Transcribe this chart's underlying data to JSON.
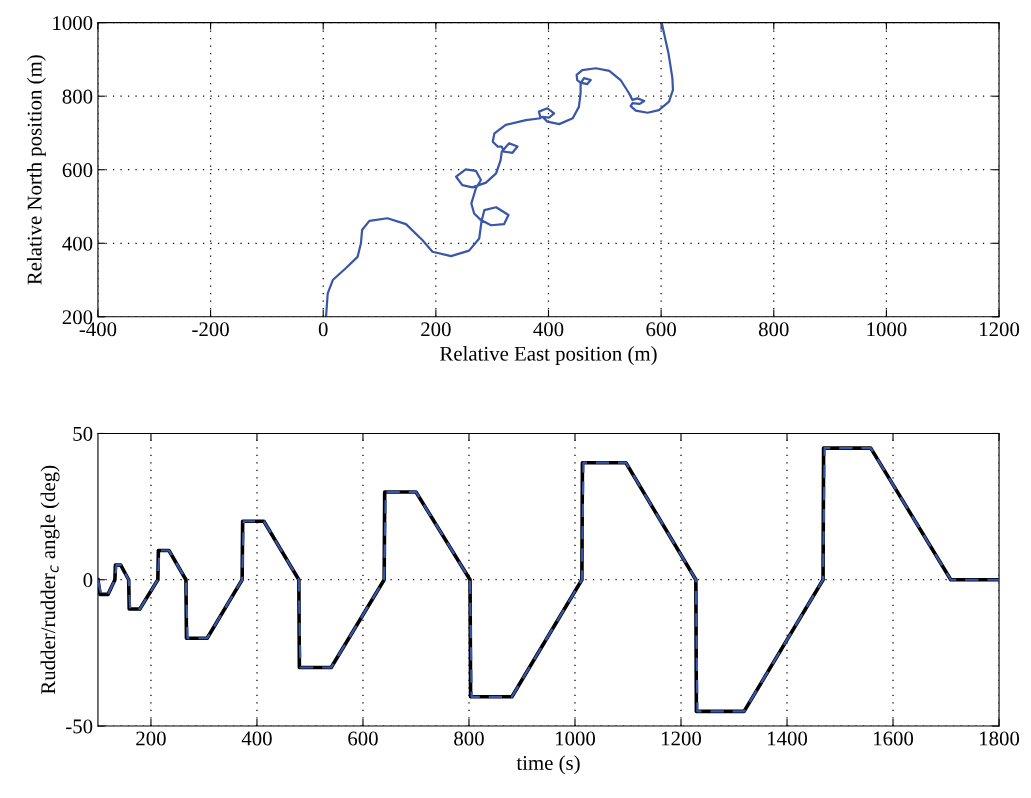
{
  "chart_data": [
    {
      "type": "line",
      "xlabel": "Relative East position (m)",
      "ylabel": "Relative North position (m)",
      "xlim": [
        -400,
        1200
      ],
      "xticks": [
        -400,
        -200,
        0,
        200,
        400,
        600,
        800,
        1000,
        1200
      ],
      "ylim": [
        200,
        1000
      ],
      "yticks": [
        200,
        400,
        600,
        800,
        1000
      ],
      "grid": true,
      "line_style": "solid",
      "series": [
        {
          "color": "#3a56a8",
          "x": [
            5,
            8,
            17,
            40,
            61,
            67,
            69,
            82,
            114,
            147,
            176,
            194,
            227,
            259,
            277,
            281,
            286,
            307,
            329,
            321,
            298,
            280,
            268,
            263,
            271,
            280,
            271,
            253,
            236,
            247,
            265,
            289,
            307,
            315,
            317,
            330,
            345,
            336,
            321,
            317,
            310,
            301,
            304,
            324,
            360,
            386,
            383,
            398,
            410,
            401,
            389,
            398,
            419,
            443,
            454,
            457,
            457,
            463,
            475,
            469,
            457,
            451,
            450,
            460,
            484,
            508,
            528,
            543,
            549,
            558,
            570,
            562,
            549,
            546,
            555,
            576,
            596,
            614,
            621,
            620,
            613,
            601
          ],
          "values": [
            200,
            264,
            300,
            332,
            363,
            400,
            436,
            461,
            468,
            452,
            409,
            377,
            365,
            380,
            413,
            459,
            490,
            498,
            477,
            452,
            449,
            463,
            481,
            508,
            549,
            572,
            597,
            601,
            581,
            558,
            552,
            565,
            590,
            626,
            649,
            672,
            663,
            646,
            649,
            663,
            663,
            676,
            699,
            722,
            735,
            740,
            758,
            767,
            753,
            742,
            744,
            731,
            724,
            740,
            771,
            808,
            835,
            849,
            844,
            833,
            837,
            844,
            858,
            871,
            876,
            869,
            844,
            808,
            790,
            794,
            787,
            779,
            781,
            773,
            761,
            755,
            762,
            785,
            817,
            849,
            917,
            1000
          ]
        }
      ]
    },
    {
      "type": "line",
      "xlabel": "time (s)",
      "ylabel": "Rudder/rudder$_{c}$ angle (deg)",
      "xlim": [
        100,
        1800
      ],
      "xticks": [
        200,
        400,
        600,
        800,
        1000,
        1200,
        1400,
        1600,
        1800
      ],
      "ylim": [
        -50,
        50
      ],
      "yticks": [
        -50,
        0,
        50
      ],
      "grid": true,
      "series": [
        {
          "color": "#000000",
          "line_style": "solid",
          "x": [
            100,
            104,
            119,
            132,
            133,
            143,
            158,
            159,
            179,
            213,
            214,
            234,
            266,
            267,
            306,
            372,
            373,
            413,
            479,
            480,
            540,
            640,
            641,
            700,
            802,
            803,
            881,
            1013,
            1014,
            1096,
            1228,
            1229,
            1319,
            1468,
            1469,
            1558,
            1709,
            1800
          ],
          "values": [
            0,
            -5,
            -5,
            0,
            5,
            5,
            0,
            -10,
            -10,
            0,
            10,
            10,
            0,
            -20,
            -20,
            0,
            20,
            20,
            0,
            -30,
            -30,
            0,
            30,
            30,
            0,
            -40,
            -40,
            0,
            40,
            40,
            0,
            -45,
            -45,
            0,
            45,
            45,
            0,
            0
          ]
        },
        {
          "color": "#3a56a8",
          "line_style": "dashed",
          "x": [
            100,
            106,
            119,
            132,
            135,
            143,
            158,
            161,
            179,
            213,
            216,
            234,
            266,
            269,
            306,
            372,
            375,
            413,
            479,
            482,
            540,
            640,
            643,
            700,
            802,
            805,
            881,
            1013,
            1016,
            1096,
            1228,
            1231,
            1319,
            1468,
            1471,
            1558,
            1709,
            1800
          ],
          "values": [
            0,
            -5,
            -5,
            0,
            5,
            5,
            0,
            -10,
            -10,
            0,
            10,
            10,
            0,
            -20,
            -20,
            0,
            20,
            20,
            0,
            -30,
            -30,
            0,
            30,
            30,
            0,
            -40,
            -40,
            0,
            40,
            40,
            0,
            -45,
            -45,
            0,
            45,
            45,
            0,
            0
          ]
        }
      ]
    }
  ]
}
